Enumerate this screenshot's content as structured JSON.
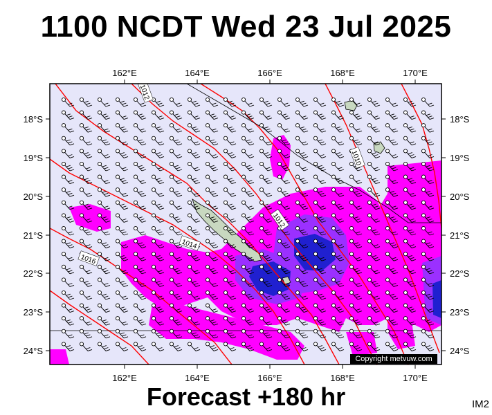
{
  "title": "1100 NCDT Wed 23 Jul 2025",
  "footer": "Forecast +180 hr",
  "image_code": "IM2",
  "copyright": "Copyright metvuw.com",
  "map": {
    "lon_labels": [
      "162°E",
      "164°E",
      "166°E",
      "168°E",
      "170°E"
    ],
    "lat_labels": [
      "18°S",
      "19°S",
      "20°S",
      "21°S",
      "22°S",
      "23°S",
      "24°S"
    ],
    "isobar_labels": [
      "1012",
      "1010",
      "1012",
      "1014",
      "1016"
    ],
    "colors": {
      "background": "#e6e6fa",
      "rain_light": "#ff00ff",
      "rain_mid": "#8a2be2",
      "rain_heavy": "#1e1ecc",
      "isobar": "#ff0000",
      "land": "#c8d8c0"
    }
  }
}
